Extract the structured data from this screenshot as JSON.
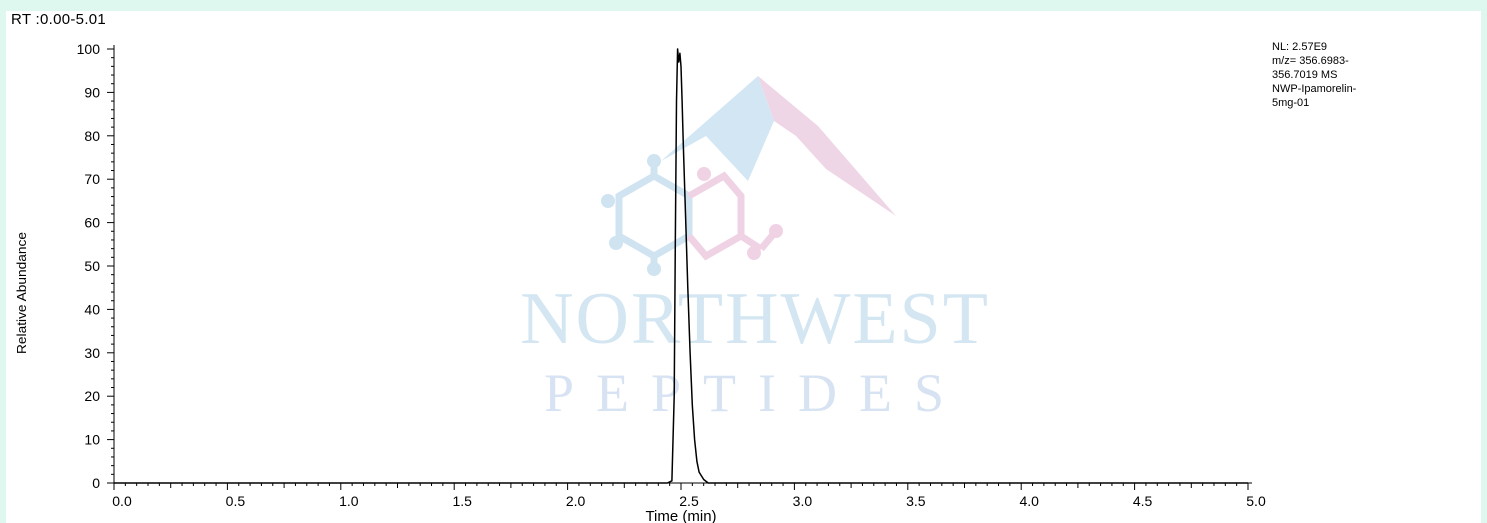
{
  "header": {
    "rt_range": "RT :0.00-5.01"
  },
  "info_box": {
    "lines": [
      "NL: 2.57E9",
      "m/z= 356.6983-",
      "356.7019 MS",
      "NWP-Ipamorelin-",
      "5mg-01"
    ]
  },
  "watermark": {
    "line1": "NORTHWEST",
    "line2": "PEPTIDES",
    "colors": {
      "blue": "#c7dff0",
      "pink": "#f0cfe0"
    }
  },
  "chart_data": {
    "type": "line",
    "title": "",
    "xlabel": "Time (min)",
    "ylabel": "Relative Abundance",
    "xlim": [
      0.0,
      5.0
    ],
    "ylim": [
      0,
      100
    ],
    "x_ticks": [
      0.0,
      0.5,
      1.0,
      1.5,
      2.0,
      2.5,
      3.0,
      3.5,
      4.0,
      4.5,
      5.0
    ],
    "x_tick_labels": [
      "0.0",
      "0.5",
      "1.0",
      "1.5",
      "2.0",
      "2.5",
      "3.0",
      "3.5",
      "4.0",
      "4.5",
      "5.0"
    ],
    "y_ticks": [
      0,
      10,
      20,
      30,
      40,
      50,
      60,
      70,
      80,
      90,
      100
    ],
    "y_tick_labels": [
      "0",
      "10",
      "20",
      "30",
      "40",
      "50",
      "60",
      "70",
      "80",
      "90",
      "100"
    ],
    "line_color": "#000000",
    "series": [
      {
        "x": [
          0.0,
          2.44,
          2.46,
          2.47,
          2.475,
          2.48,
          2.485,
          2.49,
          2.495,
          2.5,
          2.505,
          2.51,
          2.52,
          2.53,
          2.54,
          2.55,
          2.56,
          2.57,
          2.58,
          2.6,
          2.62,
          5.0
        ],
        "y": [
          0,
          0,
          0.5,
          20,
          55,
          88,
          100,
          97,
          99,
          96,
          88,
          78,
          62,
          45,
          30,
          18,
          10,
          5,
          2.5,
          0.8,
          0,
          0
        ]
      }
    ]
  }
}
